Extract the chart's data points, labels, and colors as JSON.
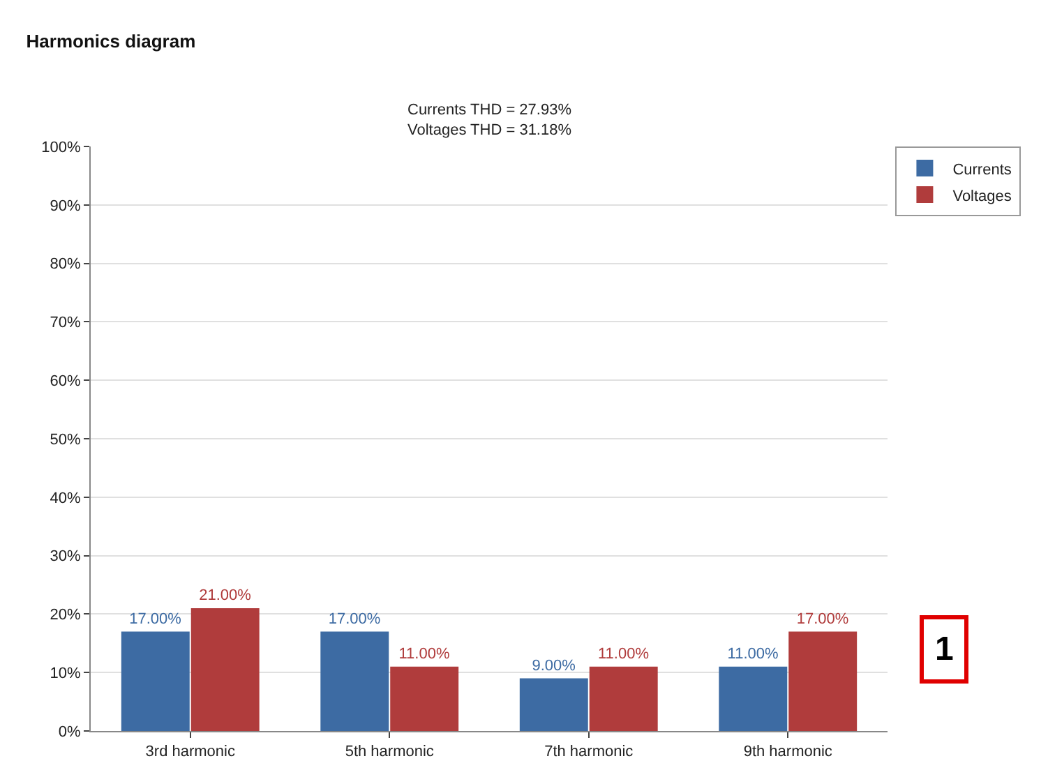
{
  "chart_data": {
    "type": "bar",
    "title": "Harmonics diagram",
    "subtitle": "Currents THD = 27.93%\nVoltages THD = 31.18%",
    "categories": [
      "3rd harmonic",
      "5th harmonic",
      "7th harmonic",
      "9th harmonic"
    ],
    "series": [
      {
        "name": "Currents",
        "color": "#3d6ba3",
        "values": [
          17,
          17,
          9,
          11
        ],
        "value_labels": [
          "17.00%",
          "17.00%",
          "9.00%",
          "11.00%"
        ]
      },
      {
        "name": "Voltages",
        "color": "#b03c3c",
        "values": [
          21,
          11,
          11,
          17
        ],
        "value_labels": [
          "21.00%",
          "11.00%",
          "11.00%",
          "17.00%"
        ]
      }
    ],
    "ylim": [
      0,
      100
    ],
    "yticks": [
      {
        "value": 0,
        "label": "0%"
      },
      {
        "value": 10,
        "label": "10%"
      },
      {
        "value": 20,
        "label": "20%"
      },
      {
        "value": 30,
        "label": "30%"
      },
      {
        "value": 40,
        "label": "40%"
      },
      {
        "value": 50,
        "label": "50%"
      },
      {
        "value": 60,
        "label": "60%"
      },
      {
        "value": 70,
        "label": "70%"
      },
      {
        "value": 80,
        "label": "80%"
      },
      {
        "value": 90,
        "label": "90%"
      },
      {
        "value": 100,
        "label": "100%"
      }
    ],
    "grid": "y",
    "legend": "top right",
    "annotations": [
      "1"
    ]
  }
}
